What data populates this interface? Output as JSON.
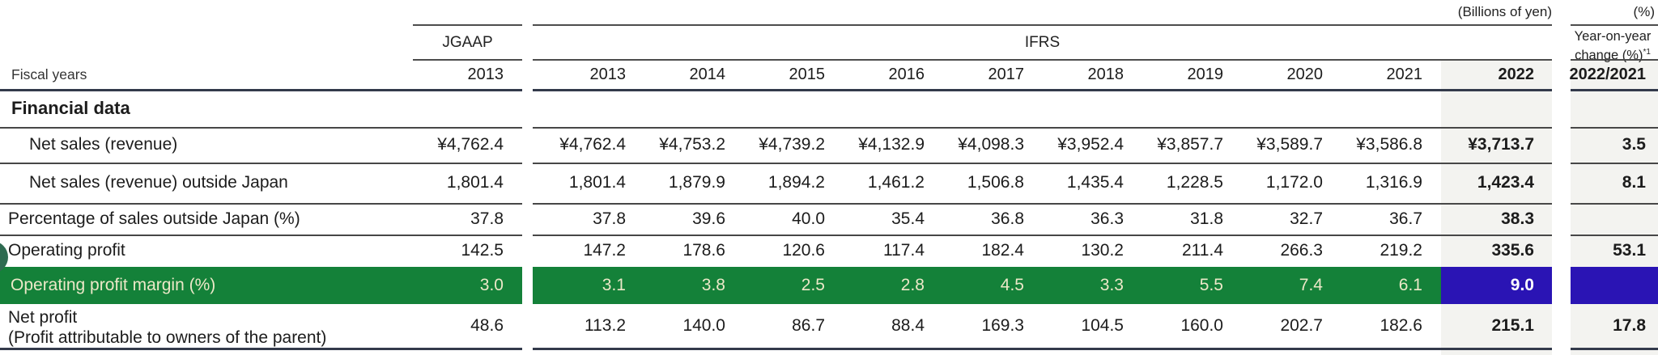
{
  "units": {
    "billions": "(Billions of yen)",
    "percent": "(%)"
  },
  "columns": {
    "fiscal_years_label": "Fiscal years",
    "jgaap_label": "JGAAP",
    "ifrs_label": "IFRS",
    "yoy_label_line1": "Year-on-year",
    "yoy_label_line2": "change (%)",
    "yoy_superscript": "*1",
    "jgaap_year": "2013",
    "ifrs_years": [
      "2013",
      "2014",
      "2015",
      "2016",
      "2017",
      "2018",
      "2019",
      "2020",
      "2021",
      "2022"
    ],
    "yoy_year": "2022/2021"
  },
  "section_title": "Financial data",
  "table": {
    "rows": [
      {
        "label": "Net sales (revenue)",
        "indent": "deep",
        "jgaap": "¥4,762.4",
        "ifrs": [
          "¥4,762.4",
          "¥4,753.2",
          "¥4,739.2",
          "¥4,132.9",
          "¥4,098.3",
          "¥3,952.4",
          "¥3,857.7",
          "¥3,589.7",
          "¥3,586.8",
          "¥3,713.7"
        ],
        "yoy": "3.5"
      },
      {
        "label": "Net sales (revenue) outside Japan",
        "indent": "deep",
        "jgaap": "1,801.4",
        "ifrs": [
          "1,801.4",
          "1,879.9",
          "1,894.2",
          "1,461.2",
          "1,506.8",
          "1,435.4",
          "1,228.5",
          "1,172.0",
          "1,316.9",
          "1,423.4"
        ],
        "yoy": "8.1"
      },
      {
        "label": "Percentage of sales outside Japan (%)",
        "indent": "none",
        "jgaap": "37.8",
        "ifrs": [
          "37.8",
          "39.6",
          "40.0",
          "35.4",
          "36.8",
          "36.3",
          "31.8",
          "32.7",
          "36.7",
          "38.3"
        ],
        "yoy": ""
      },
      {
        "label": "Operating profit",
        "indent": "none",
        "jgaap": "142.5",
        "ifrs": [
          "147.2",
          "178.6",
          "120.6",
          "117.4",
          "182.4",
          "130.2",
          "211.4",
          "266.3",
          "219.2",
          "335.6"
        ],
        "yoy": "53.1"
      },
      {
        "label": "Operating profit margin (%)",
        "indent": "none",
        "highlight": true,
        "jgaap": "3.0",
        "ifrs": [
          "3.1",
          "3.8",
          "2.5",
          "2.8",
          "4.5",
          "3.3",
          "5.5",
          "7.4",
          "6.1",
          "9.0"
        ],
        "yoy": ""
      },
      {
        "label": "Net profit",
        "label2": "(Profit attributable to owners of the parent)",
        "indent": "none",
        "jgaap": "48.6",
        "ifrs": [
          "113.2",
          "140.0",
          "86.7",
          "88.4",
          "169.3",
          "104.5",
          "160.0",
          "202.7",
          "182.6",
          "215.1"
        ],
        "yoy": "17.8"
      }
    ]
  },
  "colors": {
    "highlight_green": "#148139",
    "highlight_blue": "#2a14b4",
    "column_shade": "#f3f3f0",
    "green_row_text": "#ece8c8",
    "nav_circle": "#2e6b51"
  }
}
